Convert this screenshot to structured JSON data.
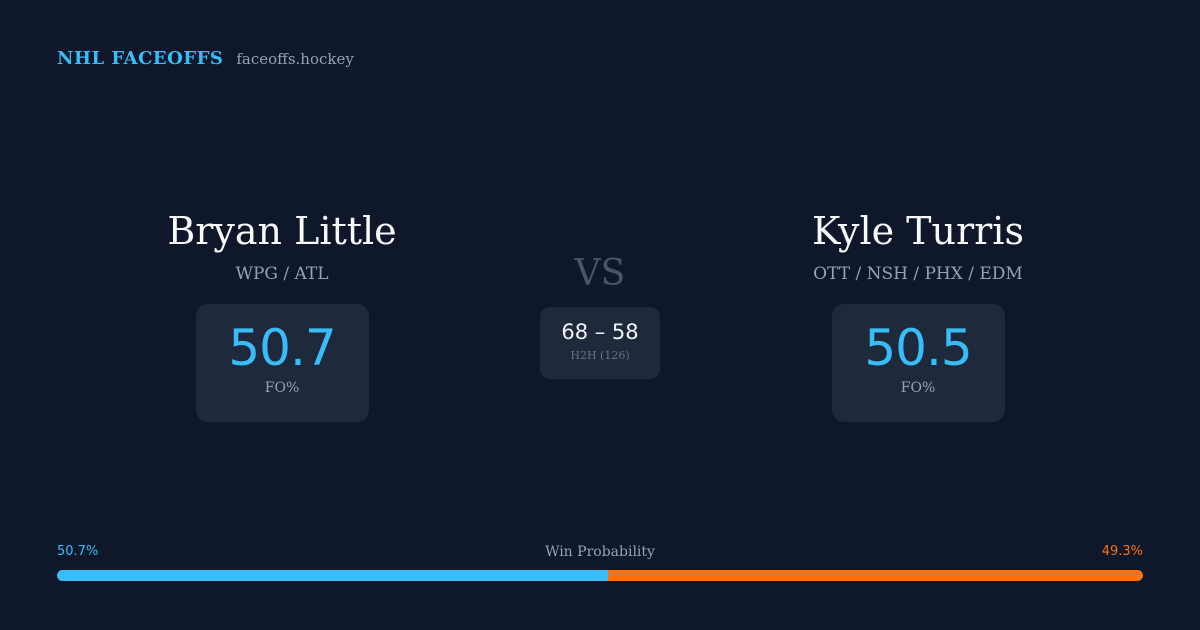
{
  "header": {
    "title": "NHL FACEOFFS",
    "domain": "faceoffs.hockey"
  },
  "player_left": {
    "name": "Bryan Little",
    "teams": "WPG / ATL",
    "fo_value": "50.7",
    "fo_label": "FO%"
  },
  "vs_label": "VS",
  "head_to_head": {
    "score": "68 – 58",
    "label": "H2H (126)"
  },
  "player_right": {
    "name": "Kyle Turris",
    "teams": "OTT / NSH / PHX / EDM",
    "fo_value": "50.5",
    "fo_label": "FO%"
  },
  "win_probability": {
    "title": "Win Probability",
    "left_label": "50.7%",
    "right_label": "49.3%",
    "left_fraction": 0.507,
    "right_fraction": 0.493
  },
  "colors": {
    "background": "#0f172a",
    "card": "#1e293b",
    "accent_blue": "#38bdf8",
    "accent_orange": "#f97316",
    "muted_text": "#94a3b8"
  }
}
